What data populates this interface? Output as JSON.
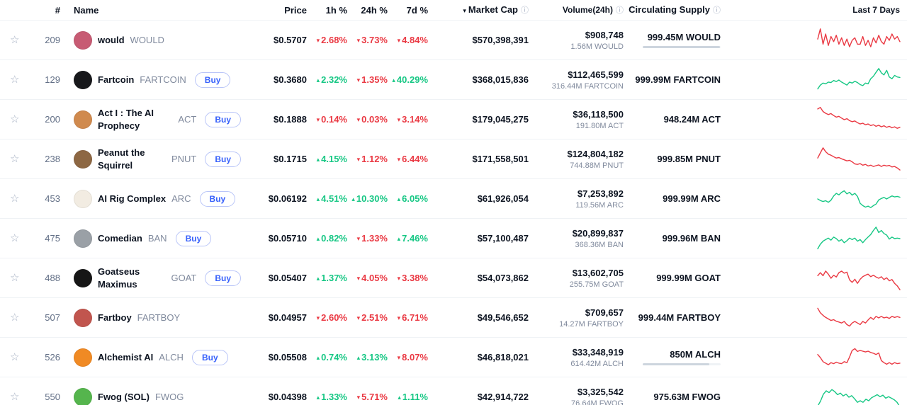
{
  "icons": {
    "star": "☆",
    "info": "ⓘ",
    "sort_down": "▾",
    "caret_up": "▴",
    "caret_down": "▾"
  },
  "colors": {
    "up": "#16c784",
    "down": "#ea3943",
    "buy": "#3861fb"
  },
  "labels": {
    "buy": "Buy"
  },
  "header": {
    "rank": "#",
    "name": "Name",
    "price": "Price",
    "h1": "1h %",
    "h24": "24h %",
    "d7": "7d %",
    "market_cap": "Market Cap",
    "volume": "Volume(24h)",
    "supply": "Circulating Supply",
    "last7": "Last 7 Days"
  },
  "table": {
    "rows": [
      {
        "rank": "209",
        "name": "would",
        "symbol": "WOULD",
        "buy": false,
        "avatar_color": "#c75b73",
        "price": "$0.5707",
        "change_1h": {
          "dir": "down",
          "value": "2.68%"
        },
        "change_24h": {
          "dir": "down",
          "value": "3.73%"
        },
        "change_7d": {
          "dir": "down",
          "value": "4.84%"
        },
        "market_cap": "$570,398,391",
        "volume": "$908,748",
        "volume_sub": "1.56M WOULD",
        "supply": "999.45M WOULD",
        "supply_bar": 99,
        "spark": {
          "color": "down",
          "points": [
            0.55,
            0.95,
            0.35,
            0.75,
            0.3,
            0.65,
            0.45,
            0.7,
            0.35,
            0.6,
            0.3,
            0.55,
            0.25,
            0.5,
            0.6,
            0.35,
            0.35,
            0.65,
            0.3,
            0.5,
            0.25,
            0.6,
            0.4,
            0.7,
            0.45,
            0.35,
            0.65,
            0.5,
            0.75,
            0.55,
            0.65,
            0.45
          ]
        }
      },
      {
        "rank": "129",
        "name": "Fartcoin",
        "symbol": "FARTCOIN",
        "buy": true,
        "avatar_color": "#17181b",
        "price": "$0.3680",
        "change_1h": {
          "dir": "up",
          "value": "2.32%"
        },
        "change_24h": {
          "dir": "down",
          "value": "1.35%"
        },
        "change_7d": {
          "dir": "up",
          "value": "40.29%"
        },
        "market_cap": "$368,015,836",
        "volume": "$112,465,599",
        "volume_sub": "316.44M FARTCOIN",
        "supply": "999.99M FARTCOIN",
        "supply_bar": null,
        "spark": {
          "color": "up",
          "points": [
            0.15,
            0.3,
            0.38,
            0.35,
            0.42,
            0.4,
            0.48,
            0.44,
            0.5,
            0.42,
            0.36,
            0.3,
            0.42,
            0.38,
            0.45,
            0.4,
            0.32,
            0.28,
            0.38,
            0.35,
            0.55,
            0.65,
            0.8,
            0.95,
            0.78,
            0.7,
            0.88,
            0.62,
            0.55,
            0.68,
            0.62,
            0.6
          ]
        }
      },
      {
        "rank": "200",
        "name": "Act I : The AI Prophecy",
        "symbol": "ACT",
        "buy": true,
        "avatar_color": "#d08a4e",
        "price": "$0.1888",
        "change_1h": {
          "dir": "down",
          "value": "0.14%"
        },
        "change_24h": {
          "dir": "down",
          "value": "0.03%"
        },
        "change_7d": {
          "dir": "down",
          "value": "3.14%"
        },
        "market_cap": "$179,045,275",
        "volume": "$36,118,500",
        "volume_sub": "191.80M ACT",
        "supply": "948.24M ACT",
        "supply_bar": null,
        "spark": {
          "color": "down",
          "points": [
            0.92,
            0.98,
            0.82,
            0.75,
            0.7,
            0.74,
            0.66,
            0.6,
            0.63,
            0.56,
            0.5,
            0.54,
            0.46,
            0.42,
            0.45,
            0.38,
            0.33,
            0.36,
            0.3,
            0.33,
            0.27,
            0.3,
            0.24,
            0.28,
            0.22,
            0.26,
            0.2,
            0.24,
            0.18,
            0.22,
            0.16,
            0.2
          ]
        }
      },
      {
        "rank": "238",
        "name": "Peanut the Squirrel",
        "symbol": "PNUT",
        "buy": true,
        "avatar_color": "#8d6743",
        "price": "$0.1715",
        "change_1h": {
          "dir": "up",
          "value": "4.15%"
        },
        "change_24h": {
          "dir": "down",
          "value": "1.12%"
        },
        "change_7d": {
          "dir": "down",
          "value": "6.44%"
        },
        "market_cap": "$171,558,501",
        "volume": "$124,804,182",
        "volume_sub": "744.88M PNUT",
        "supply": "999.85M PNUT",
        "supply_bar": null,
        "spark": {
          "color": "down",
          "points": [
            0.55,
            0.75,
            0.95,
            0.8,
            0.7,
            0.66,
            0.6,
            0.55,
            0.57,
            0.52,
            0.48,
            0.44,
            0.46,
            0.4,
            0.32,
            0.3,
            0.33,
            0.27,
            0.3,
            0.24,
            0.27,
            0.22,
            0.25,
            0.28,
            0.22,
            0.27,
            0.24,
            0.26,
            0.2,
            0.22,
            0.16,
            0.08
          ]
        }
      },
      {
        "rank": "453",
        "name": "AI Rig Complex",
        "symbol": "ARC",
        "buy": true,
        "avatar_color": "#f2ece2",
        "price": "$0.06192",
        "change_1h": {
          "dir": "up",
          "value": "4.51%"
        },
        "change_24h": {
          "dir": "up",
          "value": "10.30%"
        },
        "change_7d": {
          "dir": "up",
          "value": "6.05%"
        },
        "market_cap": "$61,926,054",
        "volume": "$7,253,892",
        "volume_sub": "119.56M ARC",
        "supply": "999.99M ARC",
        "supply_bar": null,
        "spark": {
          "color": "up",
          "points": [
            0.5,
            0.44,
            0.4,
            0.43,
            0.37,
            0.45,
            0.62,
            0.72,
            0.66,
            0.76,
            0.82,
            0.7,
            0.76,
            0.65,
            0.72,
            0.6,
            0.33,
            0.24,
            0.18,
            0.22,
            0.16,
            0.24,
            0.3,
            0.46,
            0.52,
            0.56,
            0.5,
            0.56,
            0.62,
            0.58,
            0.6,
            0.57
          ]
        }
      },
      {
        "rank": "475",
        "name": "Comedian",
        "symbol": "BAN",
        "buy": true,
        "avatar_color": "#9aa0a6",
        "price": "$0.05710",
        "change_1h": {
          "dir": "up",
          "value": "0.82%"
        },
        "change_24h": {
          "dir": "down",
          "value": "1.33%"
        },
        "change_7d": {
          "dir": "up",
          "value": "7.46%"
        },
        "market_cap": "$57,100,487",
        "volume": "$20,899,837",
        "volume_sub": "368.36M BAN",
        "supply": "999.96M BAN",
        "supply_bar": null,
        "spark": {
          "color": "up",
          "points": [
            0.1,
            0.28,
            0.4,
            0.46,
            0.52,
            0.44,
            0.56,
            0.5,
            0.4,
            0.46,
            0.34,
            0.42,
            0.52,
            0.46,
            0.52,
            0.4,
            0.46,
            0.34,
            0.46,
            0.56,
            0.66,
            0.82,
            0.95,
            0.74,
            0.82,
            0.7,
            0.64,
            0.48,
            0.56,
            0.5,
            0.52,
            0.5
          ]
        }
      },
      {
        "rank": "488",
        "name": "Goatseus Maximus",
        "symbol": "GOAT",
        "buy": true,
        "avatar_color": "#161616",
        "price": "$0.05407",
        "change_1h": {
          "dir": "up",
          "value": "1.37%"
        },
        "change_24h": {
          "dir": "down",
          "value": "4.05%"
        },
        "change_7d": {
          "dir": "down",
          "value": "3.38%"
        },
        "market_cap": "$54,073,862",
        "volume": "$13,602,705",
        "volume_sub": "255.75M GOAT",
        "supply": "999.99M GOAT",
        "supply_bar": null,
        "spark": {
          "color": "down",
          "points": [
            0.6,
            0.72,
            0.6,
            0.78,
            0.66,
            0.5,
            0.62,
            0.55,
            0.72,
            0.78,
            0.7,
            0.74,
            0.44,
            0.34,
            0.46,
            0.3,
            0.46,
            0.56,
            0.62,
            0.66,
            0.56,
            0.62,
            0.55,
            0.5,
            0.56,
            0.45,
            0.52,
            0.4,
            0.45,
            0.3,
            0.2,
            0.05
          ]
        }
      },
      {
        "rank": "507",
        "name": "Fartboy",
        "symbol": "FARTBOY",
        "buy": false,
        "avatar_color": "#c1554e",
        "price": "$0.04957",
        "change_1h": {
          "dir": "down",
          "value": "2.60%"
        },
        "change_24h": {
          "dir": "down",
          "value": "2.51%"
        },
        "change_7d": {
          "dir": "down",
          "value": "6.71%"
        },
        "market_cap": "$49,546,652",
        "volume": "$709,657",
        "volume_sub": "14.27M FARTBOY",
        "supply": "999.44M FARTBOY",
        "supply_bar": null,
        "spark": {
          "color": "down",
          "points": [
            0.88,
            0.7,
            0.6,
            0.52,
            0.46,
            0.4,
            0.43,
            0.37,
            0.34,
            0.3,
            0.36,
            0.24,
            0.18,
            0.3,
            0.36,
            0.3,
            0.24,
            0.36,
            0.3,
            0.42,
            0.52,
            0.44,
            0.56,
            0.5,
            0.56,
            0.5,
            0.53,
            0.48,
            0.56,
            0.52,
            0.55,
            0.52
          ]
        }
      },
      {
        "rank": "526",
        "name": "Alchemist AI",
        "symbol": "ALCH",
        "buy": true,
        "avatar_color": "#f08a24",
        "price": "$0.05508",
        "change_1h": {
          "dir": "up",
          "value": "0.74%"
        },
        "change_24h": {
          "dir": "up",
          "value": "3.13%"
        },
        "change_7d": {
          "dir": "down",
          "value": "8.07%"
        },
        "market_cap": "$46,818,021",
        "volume": "$33,348,919",
        "volume_sub": "614.42M ALCH",
        "supply": "850M ALCH",
        "supply_bar": 85,
        "spark": {
          "color": "down",
          "points": [
            0.62,
            0.5,
            0.34,
            0.28,
            0.22,
            0.3,
            0.26,
            0.32,
            0.28,
            0.26,
            0.34,
            0.3,
            0.52,
            0.78,
            0.85,
            0.74,
            0.78,
            0.75,
            0.72,
            0.75,
            0.7,
            0.67,
            0.62,
            0.68,
            0.38,
            0.3,
            0.24,
            0.3,
            0.24,
            0.3,
            0.26,
            0.28
          ]
        }
      },
      {
        "rank": "550",
        "name": "Fwog (SOL)",
        "symbol": "FWOG",
        "buy": false,
        "avatar_color": "#55b54d",
        "price": "$0.04398",
        "change_1h": {
          "dir": "up",
          "value": "1.33%"
        },
        "change_24h": {
          "dir": "down",
          "value": "5.71%"
        },
        "change_7d": {
          "dir": "up",
          "value": "1.11%"
        },
        "market_cap": "$42,914,722",
        "volume": "$3,325,542",
        "volume_sub": "76.64M FWOG",
        "supply": "975.63M FWOG",
        "supply_bar": null,
        "spark": {
          "color": "up",
          "points": [
            0.15,
            0.35,
            0.62,
            0.75,
            0.68,
            0.8,
            0.72,
            0.6,
            0.66,
            0.55,
            0.62,
            0.5,
            0.56,
            0.44,
            0.3,
            0.36,
            0.3,
            0.42,
            0.36,
            0.48,
            0.54,
            0.6,
            0.52,
            0.58,
            0.46,
            0.52,
            0.46,
            0.4,
            0.3,
            0.12
          ]
        }
      }
    ]
  }
}
